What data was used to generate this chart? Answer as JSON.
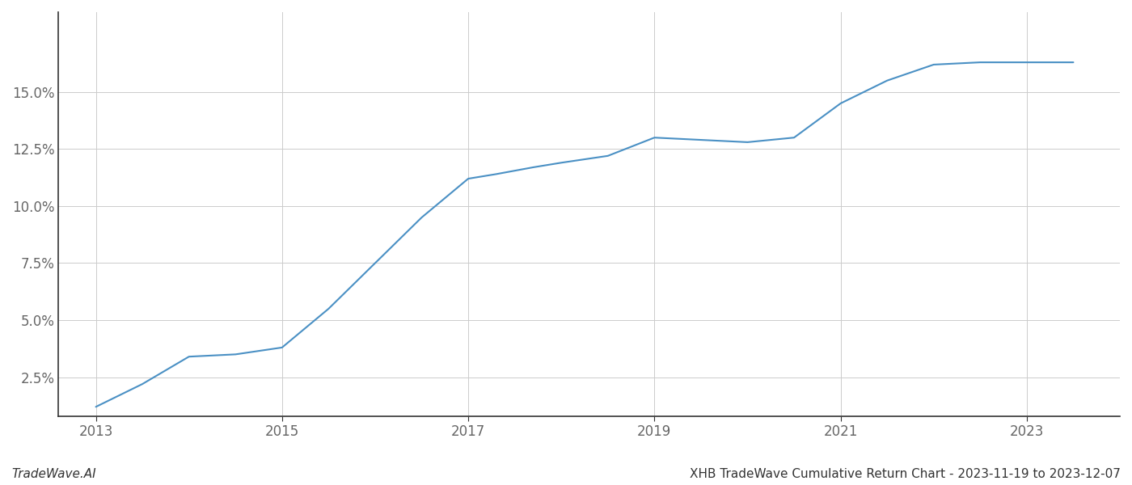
{
  "title": "XHB TradeWave Cumulative Return Chart - 2023-11-19 to 2023-12-07",
  "watermark": "TradeWave.AI",
  "line_color": "#4a90c4",
  "background_color": "#ffffff",
  "grid_color": "#cccccc",
  "x_values": [
    2013.0,
    2013.5,
    2014.0,
    2014.5,
    2015.0,
    2015.5,
    2016.0,
    2016.5,
    2017.0,
    2017.3,
    2017.7,
    2018.0,
    2018.5,
    2019.0,
    2019.5,
    2020.0,
    2020.5,
    2021.0,
    2021.5,
    2022.0,
    2022.5,
    2023.0,
    2023.5
  ],
  "y_values": [
    1.2,
    2.2,
    3.4,
    3.5,
    3.8,
    5.5,
    7.5,
    9.5,
    11.2,
    11.4,
    11.7,
    11.9,
    12.2,
    13.0,
    12.9,
    12.8,
    13.0,
    14.5,
    15.5,
    16.2,
    16.3,
    16.3,
    16.3
  ],
  "xlim": [
    2012.6,
    2024.0
  ],
  "ylim_min": 0.8,
  "ylim_max": 18.5,
  "yticks": [
    2.5,
    5.0,
    7.5,
    10.0,
    12.5,
    15.0
  ],
  "xticks": [
    2013,
    2015,
    2017,
    2019,
    2021,
    2023
  ],
  "tick_fontsize": 12,
  "title_fontsize": 11,
  "watermark_fontsize": 11,
  "line_width": 1.5,
  "spine_color": "#333333",
  "tick_color": "#666666"
}
